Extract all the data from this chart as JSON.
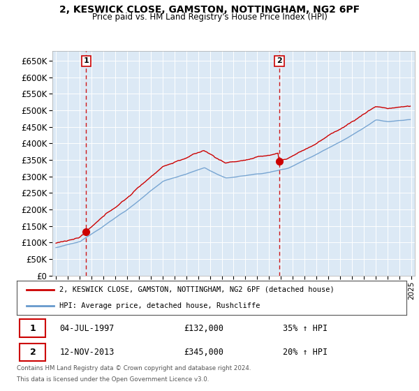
{
  "title": "2, KESWICK CLOSE, GAMSTON, NOTTINGHAM, NG2 6PF",
  "subtitle": "Price paid vs. HM Land Registry's House Price Index (HPI)",
  "ylim": [
    0,
    680000
  ],
  "yticks": [
    0,
    50000,
    100000,
    150000,
    200000,
    250000,
    300000,
    350000,
    400000,
    450000,
    500000,
    550000,
    600000,
    650000
  ],
  "ytick_labels": [
    "£0",
    "£50K",
    "£100K",
    "£150K",
    "£200K",
    "£250K",
    "£300K",
    "£350K",
    "£400K",
    "£450K",
    "£500K",
    "£550K",
    "£600K",
    "£650K"
  ],
  "sale1_year": 1997.54,
  "sale1_price": 132000,
  "sale1_label": "1",
  "sale1_text": "04-JUL-1997",
  "sale1_amount": "£132,000",
  "sale1_hpi": "35% ↑ HPI",
  "sale2_year": 2013.87,
  "sale2_price": 345000,
  "sale2_label": "2",
  "sale2_text": "12-NOV-2013",
  "sale2_amount": "£345,000",
  "sale2_hpi": "20% ↑ HPI",
  "property_line_color": "#cc0000",
  "hpi_line_color": "#6699cc",
  "dashed_line_color": "#cc0000",
  "plot_bg_color": "#dce9f5",
  "legend_label1": "2, KESWICK CLOSE, GAMSTON, NOTTINGHAM, NG2 6PF (detached house)",
  "legend_label2": "HPI: Average price, detached house, Rushcliffe",
  "footer1": "Contains HM Land Registry data © Crown copyright and database right 2024.",
  "footer2": "This data is licensed under the Open Government Licence v3.0."
}
